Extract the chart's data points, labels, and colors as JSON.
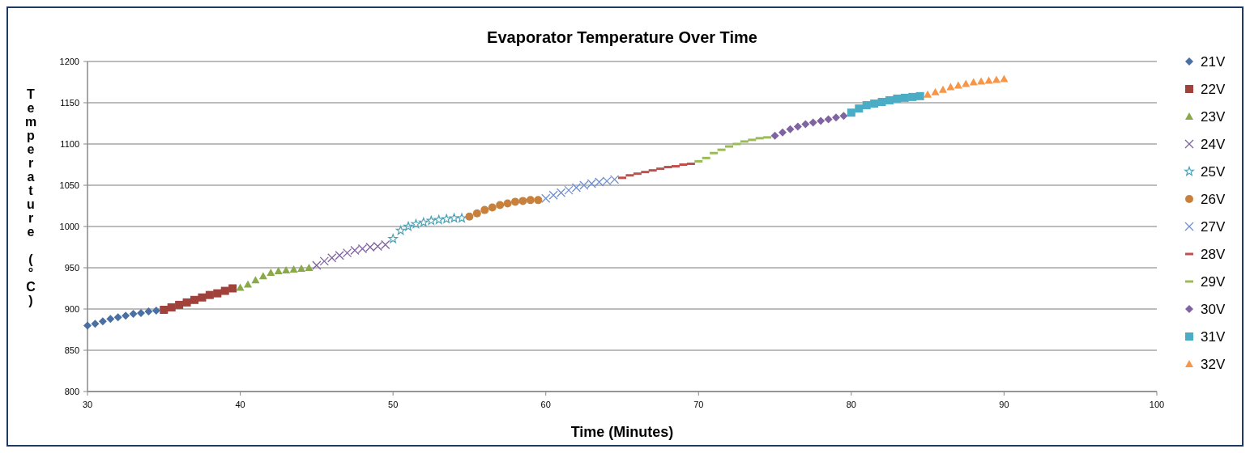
{
  "chart_data": {
    "type": "scatter",
    "title": "Evaporator Temperature Over Time",
    "xlabel": "Time (Minutes)",
    "ylabel": "Temperature (°C)",
    "xlim": [
      30,
      100
    ],
    "xticks": [
      30,
      40,
      50,
      60,
      70,
      80,
      90,
      100
    ],
    "ylim": [
      800,
      1200
    ],
    "yticks": [
      800,
      850,
      900,
      950,
      1000,
      1050,
      1100,
      1150,
      1200
    ],
    "grid": "y",
    "legend": "right",
    "series": [
      {
        "name": "21V",
        "color": "#4a6fa5",
        "marker": "diamond",
        "x": [
          30,
          30.5,
          31,
          31.5,
          32,
          32.5,
          33,
          33.5,
          34,
          34.5
        ],
        "values": [
          880,
          882,
          885,
          888,
          890,
          892,
          894,
          895,
          897,
          898
        ]
      },
      {
        "name": "22V",
        "color": "#a0413c",
        "marker": "square",
        "x": [
          35,
          35.5,
          36,
          36.5,
          37,
          37.5,
          38,
          38.5,
          39,
          39.5
        ],
        "values": [
          899,
          902,
          905,
          908,
          911,
          914,
          917,
          919,
          922,
          925
        ]
      },
      {
        "name": "23V",
        "color": "#8aa94a",
        "marker": "triangle",
        "x": [
          40,
          40.5,
          41,
          41.5,
          42,
          42.5,
          43,
          43.5,
          44,
          44.5
        ],
        "values": [
          926,
          930,
          935,
          940,
          944,
          946,
          947,
          948,
          949,
          950
        ]
      },
      {
        "name": "24V",
        "color": "#7f62a0",
        "marker": "cross",
        "x": [
          45,
          45.5,
          46,
          46.5,
          47,
          47.5,
          48,
          48.5,
          49,
          49.5
        ],
        "values": [
          953,
          958,
          962,
          965,
          968,
          971,
          973,
          975,
          976,
          978
        ]
      },
      {
        "name": "25V",
        "color": "#4ba3b8",
        "marker": "star",
        "x": [
          50,
          50.5,
          51,
          51.5,
          52,
          52.5,
          53,
          53.5,
          54,
          54.5
        ],
        "values": [
          985,
          995,
          1000,
          1003,
          1005,
          1007,
          1008,
          1009,
          1010,
          1010
        ]
      },
      {
        "name": "26V",
        "color": "#c8813c",
        "marker": "circle",
        "x": [
          55,
          55.5,
          56,
          56.5,
          57,
          57.5,
          58,
          58.5,
          59,
          59.5
        ],
        "values": [
          1012,
          1016,
          1020,
          1023,
          1026,
          1028,
          1030,
          1031,
          1032,
          1032
        ]
      },
      {
        "name": "27V",
        "color": "#6f8fcf",
        "marker": "cross",
        "x": [
          60,
          60.5,
          61,
          61.5,
          62,
          62.5,
          63,
          63.5,
          64,
          64.5
        ],
        "values": [
          1034,
          1038,
          1041,
          1044,
          1047,
          1050,
          1052,
          1054,
          1055,
          1057
        ]
      },
      {
        "name": "28V",
        "color": "#c0504d",
        "x": [
          65,
          65.5,
          66,
          66.5,
          67,
          67.5,
          68,
          68.5,
          69,
          69.5
        ],
        "values": [
          1059,
          1062,
          1064,
          1066,
          1068,
          1070,
          1072,
          1073,
          1075,
          1076
        ]
      },
      {
        "name": "29V",
        "color": "#9bbb59",
        "x": [
          70,
          70.5,
          71,
          71.5,
          72,
          72.5,
          73,
          73.5,
          74,
          74.5
        ],
        "values": [
          1079,
          1083,
          1089,
          1093,
          1097,
          1100,
          1103,
          1105,
          1107,
          1108
        ]
      },
      {
        "name": "30V",
        "color": "#8064a2",
        "marker": "diamond",
        "x": [
          75,
          75.5,
          76,
          76.5,
          77,
          77.5,
          78,
          78.5,
          79,
          79.5
        ],
        "values": [
          1110,
          1114,
          1118,
          1121,
          1124,
          1126,
          1128,
          1130,
          1132,
          1134
        ]
      },
      {
        "name": "31V",
        "color": "#4bacc6",
        "marker": "square",
        "x": [
          80,
          80.5,
          81,
          81.5,
          82,
          82.5,
          83,
          83.5,
          84,
          84.5
        ],
        "values": [
          1138,
          1143,
          1147,
          1149,
          1151,
          1153,
          1155,
          1156,
          1157,
          1158
        ]
      },
      {
        "name": "32V",
        "color": "#f79646",
        "marker": "triangle",
        "x": [
          85,
          85.5,
          86,
          86.5,
          87,
          87.5,
          88,
          88.5,
          89,
          89.5,
          90
        ],
        "values": [
          1160,
          1163,
          1166,
          1169,
          1171,
          1173,
          1175,
          1176,
          1177,
          1178,
          1179
        ]
      }
    ]
  }
}
